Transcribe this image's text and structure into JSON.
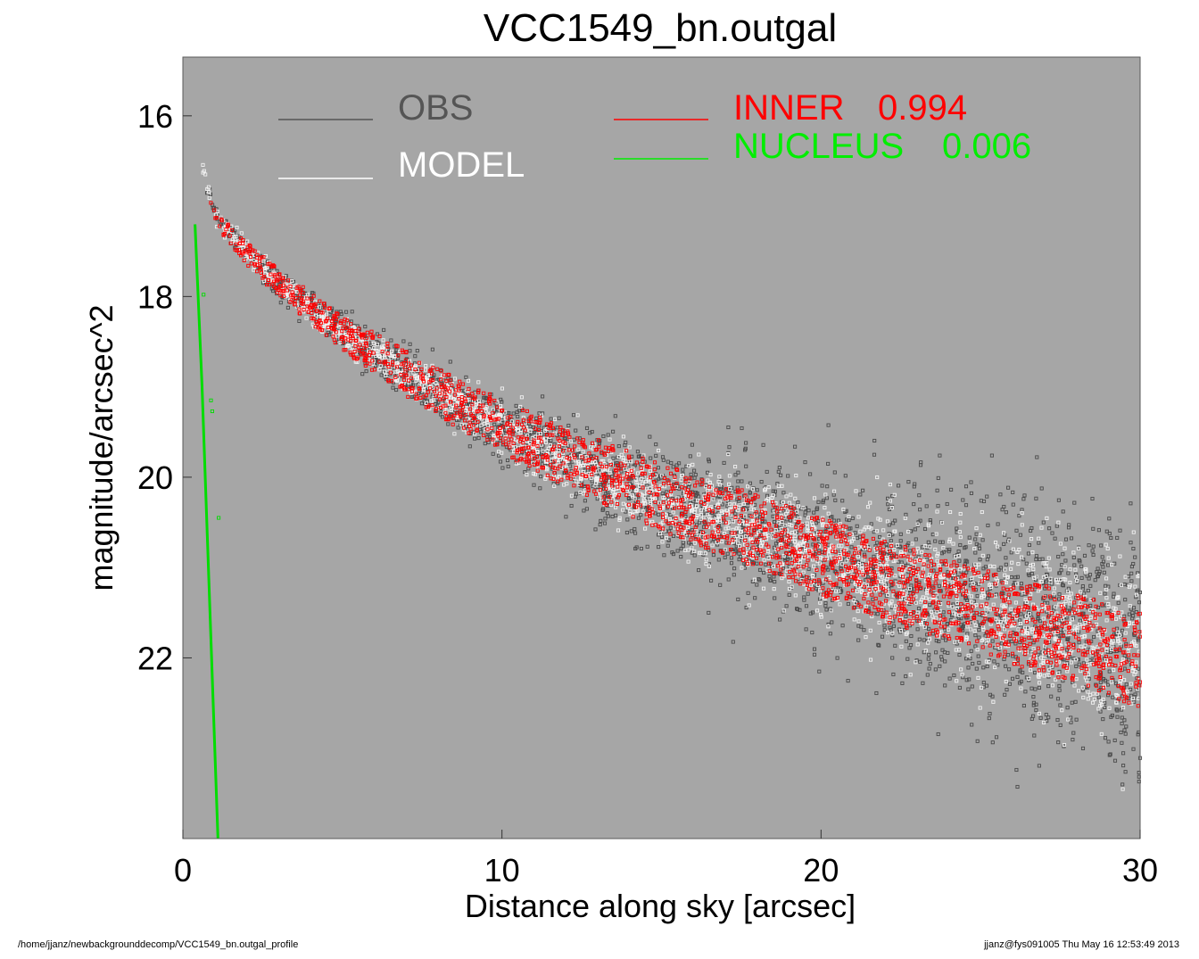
{
  "footer": {
    "path": "/home/jjanz/newbackgrounddecomp/VCC1549_bn.outgal_profile",
    "stamp": "jjanz@fys091005  Thu May 16 12:53:49 2013"
  },
  "chart_data": {
    "type": "scatter",
    "title": "VCC1549_bn.outgal",
    "xlabel": "Distance along sky [arcsec]",
    "ylabel": "magnitude/arcsec^2",
    "xlim": [
      0,
      30
    ],
    "ylim": [
      24,
      15.35
    ],
    "y_inverted": true,
    "grid": false,
    "background": "#a6a6a6",
    "x_ticks": [
      0,
      10,
      20,
      30
    ],
    "y_ticks": [
      16,
      18,
      20,
      22
    ],
    "legend": [
      {
        "label": "OBS",
        "color": "#555555"
      },
      {
        "label": "MODEL",
        "color": "#ffffff"
      },
      {
        "label": "INNER",
        "value": "0.994",
        "color": "#ff0000"
      },
      {
        "label": "NUCLEUS",
        "value": "0.006",
        "color": "#00ee00"
      }
    ],
    "series": [
      {
        "name": "OBS",
        "style": "points",
        "color": "#4a4a4a",
        "profile": {
          "x": [
            0.7,
            1,
            2,
            3,
            5,
            7,
            10,
            12,
            15,
            18,
            20,
            22,
            25,
            28,
            30
          ],
          "y": [
            16.7,
            17.1,
            17.5,
            17.85,
            18.4,
            18.85,
            19.45,
            19.8,
            20.25,
            20.6,
            20.85,
            21.1,
            21.4,
            21.7,
            21.9
          ]
        },
        "scatter": {
          "x": [
            0.7,
            5,
            10,
            15,
            20,
            25,
            30
          ],
          "sd": [
            0.05,
            0.1,
            0.17,
            0.3,
            0.45,
            0.6,
            0.7
          ]
        }
      },
      {
        "name": "MODEL",
        "style": "points",
        "color": "#f2f2f2",
        "profile": {
          "x": [
            0.4,
            0.5,
            1,
            2,
            3,
            5,
            7,
            10,
            12,
            15,
            18,
            20,
            22,
            25,
            28,
            30
          ],
          "y": [
            16.0,
            16.4,
            17.1,
            17.5,
            17.85,
            18.4,
            18.85,
            19.45,
            19.8,
            20.25,
            20.6,
            20.85,
            21.1,
            21.4,
            21.7,
            21.9
          ]
        },
        "scatter": {
          "x": [
            0.7,
            5,
            10,
            15,
            20,
            25,
            30
          ],
          "sd": [
            0.04,
            0.08,
            0.14,
            0.22,
            0.32,
            0.42,
            0.5
          ]
        }
      },
      {
        "name": "INNER",
        "style": "points",
        "color": "#ff0000",
        "band_upper": {
          "x": [
            0.8,
            1,
            2,
            3,
            5,
            7,
            10,
            12,
            15,
            18,
            20,
            22,
            25,
            28,
            30
          ],
          "y": [
            16.75,
            17.05,
            17.4,
            17.7,
            18.2,
            18.6,
            19.15,
            19.45,
            19.85,
            20.2,
            20.45,
            20.7,
            21.0,
            21.3,
            21.5
          ]
        },
        "band_lower": {
          "x": [
            0.8,
            1,
            2,
            3,
            5,
            7,
            10,
            12,
            15,
            18,
            20,
            22,
            25,
            28,
            30
          ],
          "y": [
            16.85,
            17.2,
            17.65,
            18.0,
            18.6,
            19.1,
            19.75,
            20.1,
            20.6,
            21.0,
            21.3,
            21.6,
            21.95,
            22.3,
            22.55
          ]
        }
      },
      {
        "name": "NUCLEUS",
        "style": "line",
        "color": "#00dd00",
        "x": [
          0.38,
          0.6,
          0.85,
          1.1
        ],
        "y": [
          17.2,
          19.0,
          21.5,
          24.0
        ],
        "points": {
          "x": [
            0.65,
            0.88,
            0.92,
            1.12
          ],
          "y": [
            17.98,
            19.15,
            19.27,
            20.45
          ]
        }
      }
    ]
  }
}
